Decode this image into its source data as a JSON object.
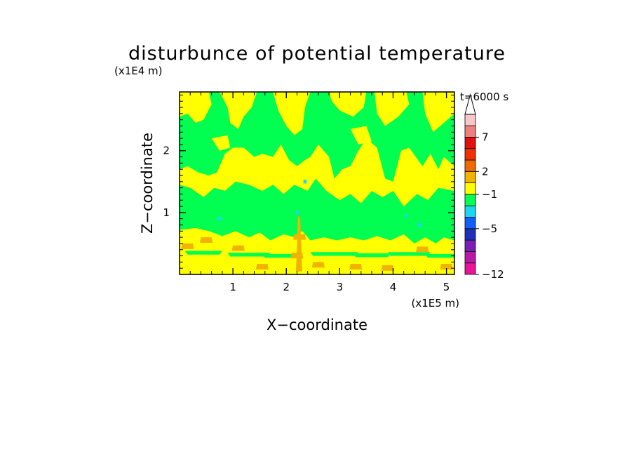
{
  "chart_data": {
    "type": "heatmap",
    "title": "disturbunce of potential temperature",
    "xlabel": "X−coordinate",
    "ylabel": "Z−coordinate",
    "x_scale_label": "(x1E5 m)",
    "y_scale_label": "(x1E4 m)",
    "time_label": "t=6000 s",
    "xlim": [
      0,
      5.15
    ],
    "ylim": [
      0,
      2.95
    ],
    "x_ticks": [
      {
        "value": 1,
        "label": "1"
      },
      {
        "value": 2,
        "label": "2"
      },
      {
        "value": 3,
        "label": "3"
      },
      {
        "value": 4,
        "label": "4"
      },
      {
        "value": 5,
        "label": "5"
      }
    ],
    "y_ticks": [
      {
        "value": 1,
        "label": "1"
      },
      {
        "value": 2,
        "label": "2"
      }
    ],
    "colorbar": {
      "levels": [
        {
          "color": "#e8149a"
        },
        {
          "color": "#b81aa6"
        },
        {
          "color": "#7a1fb4"
        },
        {
          "color": "#1f2fb8"
        },
        {
          "color": "#1060ff"
        },
        {
          "color": "#1ad8f0"
        },
        {
          "color": "#00ff50"
        },
        {
          "color": "#ffff00"
        },
        {
          "color": "#f0b400"
        },
        {
          "color": "#f06a00"
        },
        {
          "color": "#f03000"
        },
        {
          "color": "#e01010"
        },
        {
          "color": "#f08080"
        },
        {
          "color": "#f8c8c8"
        }
      ],
      "tick_labels": [
        {
          "label": "−12",
          "boundary": 0
        },
        {
          "label": "−5",
          "boundary": 4
        },
        {
          "label": "−1",
          "boundary": 7
        },
        {
          "label": "2",
          "boundary": 9
        },
        {
          "label": "7",
          "boundary": 12
        }
      ]
    },
    "field_colors": {
      "positive_small": "#ffff00",
      "negative_small": "#00ff50",
      "positive_medium": "#f0b400",
      "negative_medium": "#1ad8f0"
    }
  }
}
